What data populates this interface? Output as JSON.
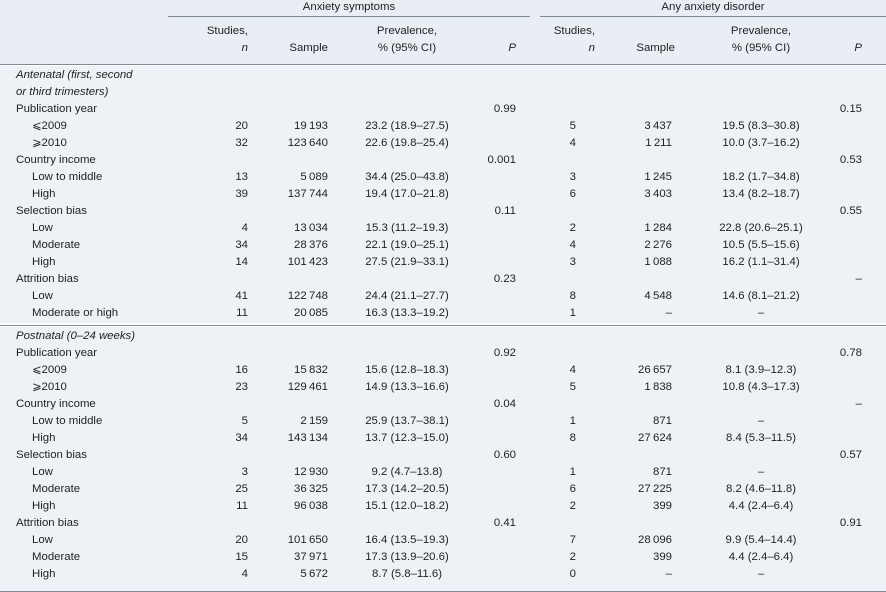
{
  "header": {
    "group1": "Anxiety symptoms",
    "group2": "Any anxiety disorder",
    "studies": "Studies,",
    "n": "n",
    "sample": "Sample",
    "prevalence": "Prevalence,",
    "ci": "% (95% CI)",
    "p": "P"
  },
  "sections": [
    {
      "title": "Antenatal (first, second or third trimesters)",
      "title_lines": [
        "Antenatal (first, second",
        "or third trimesters)"
      ],
      "groups": [
        {
          "label": "Publication year",
          "p1": "0.99",
          "p2": "0.15",
          "rows": [
            {
              "label": "⩽2009",
              "s1": "20",
              "n1": "19 193",
              "v1": "23.2 (18.9–27.5)",
              "s2": "5",
              "n2": "3 437",
              "v2": "19.5 (8.3–30.8)"
            },
            {
              "label": "⩾2010",
              "s1": "32",
              "n1": "123 640",
              "v1": "22.6 (19.8–25.4)",
              "s2": "4",
              "n2": "1 211",
              "v2": "10.0 (3.7–16.2)"
            }
          ]
        },
        {
          "label": "Country income",
          "p1": "0.001",
          "p2": "0.53",
          "rows": [
            {
              "label": "Low to middle",
              "s1": "13",
              "n1": "5 089",
              "v1": "34.4 (25.0–43.8)",
              "s2": "3",
              "n2": "1 245",
              "v2": "18.2 (1.7–34.8)"
            },
            {
              "label": "High",
              "s1": "39",
              "n1": "137 744",
              "v1": "19.4 (17.0–21.8)",
              "s2": "6",
              "n2": "3 403",
              "v2": "13.4 (8.2–18.7)"
            }
          ]
        },
        {
          "label": "Selection bias",
          "p1": "0.11",
          "p2": "0.55",
          "rows": [
            {
              "label": "Low",
              "s1": "4",
              "n1": "13 034",
              "v1": "15.3 (11.2–19.3)",
              "s2": "2",
              "n2": "1 284",
              "v2": "22.8 (20.6–25.1)"
            },
            {
              "label": "Moderate",
              "s1": "34",
              "n1": "28 376",
              "v1": "22.1 (19.0–25.1)",
              "s2": "4",
              "n2": "2 276",
              "v2": "10.5 (5.5–15.6)"
            },
            {
              "label": "High",
              "s1": "14",
              "n1": "101 423",
              "v1": "27.5 (21.9–33.1)",
              "s2": "3",
              "n2": "1 088",
              "v2": "16.2 (1.1–31.4)"
            }
          ]
        },
        {
          "label": "Attrition bias",
          "p1": "0.23",
          "p2": "–",
          "rows": [
            {
              "label": "Low",
              "s1": "41",
              "n1": "122 748",
              "v1": "24.4 (21.1–27.7)",
              "s2": "8",
              "n2": "4 548",
              "v2": "14.6 (8.1–21.2)"
            },
            {
              "label": "Moderate or high",
              "s1": "11",
              "n1": "20 085",
              "v1": "16.3 (13.3–19.2)",
              "s2": "1",
              "n2": "–",
              "v2": "–"
            }
          ]
        }
      ]
    },
    {
      "title": "Postnatal (0–24 weeks)",
      "title_lines": [
        "Postnatal (0–24 weeks)"
      ],
      "groups": [
        {
          "label": "Publication year",
          "p1": "0.92",
          "p2": "0.78",
          "rows": [
            {
              "label": "⩽2009",
              "s1": "16",
              "n1": "15 832",
              "v1": "15.6 (12.8–18.3)",
              "s2": "4",
              "n2": "26 657",
              "v2": "8.1 (3.9–12.3)"
            },
            {
              "label": "⩾2010",
              "s1": "23",
              "n1": "129 461",
              "v1": "14.9 (13.3–16.6)",
              "s2": "5",
              "n2": "1 838",
              "v2": "10.8 (4.3–17.3)"
            }
          ]
        },
        {
          "label": "Country income",
          "p1": "0.04",
          "p2": "–",
          "rows": [
            {
              "label": "Low to middle",
              "s1": "5",
              "n1": "2 159",
              "v1": "25.9 (13.7–38.1)",
              "s2": "1",
              "n2": "871",
              "v2": "–"
            },
            {
              "label": "High",
              "s1": "34",
              "n1": "143 134",
              "v1": "13.7 (12.3–15.0)",
              "s2": "8",
              "n2": "27 624",
              "v2": "8.4 (5.3–11.5)"
            }
          ]
        },
        {
          "label": "Selection bias",
          "p1": "0.60",
          "p2": "0.57",
          "rows": [
            {
              "label": "Low",
              "s1": "3",
              "n1": "12 930",
              "v1": "9.2 (4.7–13.8)",
              "s2": "1",
              "n2": "871",
              "v2": "–"
            },
            {
              "label": "Moderate",
              "s1": "25",
              "n1": "36 325",
              "v1": "17.3 (14.2–20.5)",
              "s2": "6",
              "n2": "27 225",
              "v2": "8.2 (4.6–11.8)"
            },
            {
              "label": "High",
              "s1": "11",
              "n1": "96 038",
              "v1": "15.1 (12.0–18.2)",
              "s2": "2",
              "n2": "399",
              "v2": "4.4 (2.4–6.4)"
            }
          ]
        },
        {
          "label": "Attrition bias",
          "p1": "0.41",
          "p2": "0.91",
          "rows": [
            {
              "label": "Low",
              "s1": "20",
              "n1": "101 650",
              "v1": "16.4 (13.5–19.3)",
              "s2": "7",
              "n2": "28 096",
              "v2": "9.9 (5.4–14.4)"
            },
            {
              "label": "Moderate",
              "s1": "15",
              "n1": "37 971",
              "v1": "17.3 (13.9–20.6)",
              "s2": "2",
              "n2": "399",
              "v2": "4.4 (2.4–6.4)"
            },
            {
              "label": "High",
              "s1": "4",
              "n1": "5 672",
              "v1": "8.7 (5.8–11.6)",
              "s2": "0",
              "n2": "–",
              "v2": "–"
            }
          ]
        }
      ]
    }
  ]
}
